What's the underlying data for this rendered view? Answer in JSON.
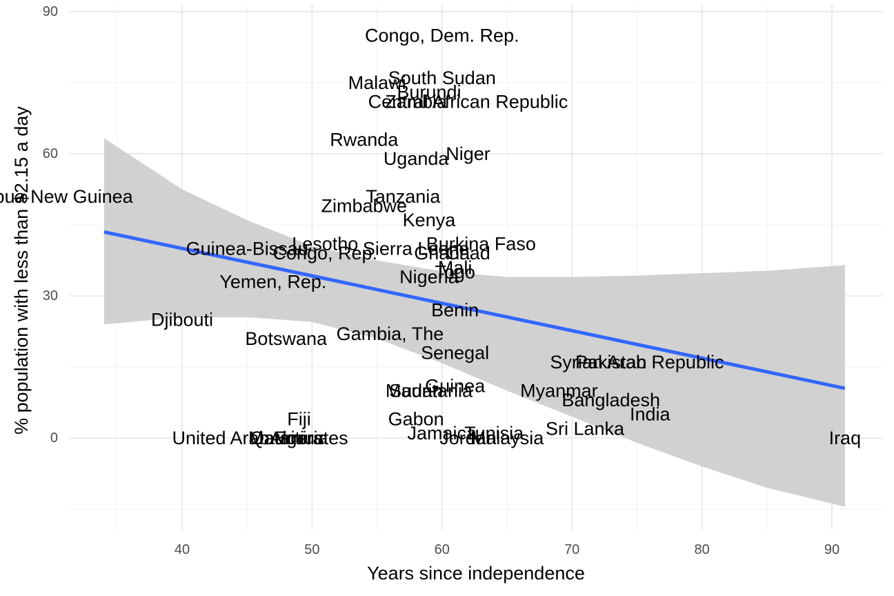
{
  "chart_data": {
    "type": "scatter",
    "title": "",
    "xlabel": "Years since independence",
    "ylabel": "% population with less than $2.15 a day",
    "xlim": [
      30,
      93
    ],
    "ylim": [
      -19,
      90
    ],
    "x_ticks": [
      40,
      50,
      60,
      70,
      80,
      90
    ],
    "y_ticks": [
      0,
      30,
      60,
      90
    ],
    "grid": true,
    "legend": "none",
    "points": [
      {
        "label": "Congo, Dem. Rep.",
        "x": 60,
        "y": 85
      },
      {
        "label": "South Sudan",
        "x": 60,
        "y": 76
      },
      {
        "label": "Malawi",
        "x": 55,
        "y": 75
      },
      {
        "label": "Burundi",
        "x": 59,
        "y": 73
      },
      {
        "label": "Zambia",
        "x": 58,
        "y": 71
      },
      {
        "label": "Central African Republic",
        "x": 62,
        "y": 71
      },
      {
        "label": "Rwanda",
        "x": 54,
        "y": 63
      },
      {
        "label": "Niger",
        "x": 62,
        "y": 60
      },
      {
        "label": "Uganda",
        "x": 58,
        "y": 59
      },
      {
        "label": "Papua New Guinea",
        "x": 30,
        "y": 51
      },
      {
        "label": "Tanzania",
        "x": 57,
        "y": 51
      },
      {
        "label": "Zimbabwe",
        "x": 54,
        "y": 49
      },
      {
        "label": "Kenya",
        "x": 59,
        "y": 46
      },
      {
        "label": "Lesotho",
        "x": 51,
        "y": 41
      },
      {
        "label": "Burkina Faso",
        "x": 63,
        "y": 41
      },
      {
        "label": "Sierra Leone",
        "x": 58,
        "y": 40
      },
      {
        "label": "Guinea-Bissau",
        "x": 45,
        "y": 40
      },
      {
        "label": "Congo, Rep.",
        "x": 51,
        "y": 39
      },
      {
        "label": "Ghana",
        "x": 60,
        "y": 39
      },
      {
        "label": "Chad",
        "x": 62,
        "y": 39
      },
      {
        "label": "Mali",
        "x": 61,
        "y": 36
      },
      {
        "label": "Togo",
        "x": 61,
        "y": 35
      },
      {
        "label": "Nigeria",
        "x": 59,
        "y": 34
      },
      {
        "label": "Yemen, Rep.",
        "x": 47,
        "y": 33
      },
      {
        "label": "Benin",
        "x": 61,
        "y": 27
      },
      {
        "label": "Djibouti",
        "x": 40,
        "y": 25
      },
      {
        "label": "Gambia, The",
        "x": 56,
        "y": 22
      },
      {
        "label": "Botswana",
        "x": 48,
        "y": 21
      },
      {
        "label": "Senegal",
        "x": 61,
        "y": 18
      },
      {
        "label": "Pakistan",
        "x": 73,
        "y": 16
      },
      {
        "label": "Syrian Arab Republic",
        "x": 75,
        "y": 16
      },
      {
        "label": "Guinea",
        "x": 61,
        "y": 11
      },
      {
        "label": "Mauritania",
        "x": 59,
        "y": 10
      },
      {
        "label": "Sudan",
        "x": 58,
        "y": 10
      },
      {
        "label": "Myanmar",
        "x": 69,
        "y": 10
      },
      {
        "label": "Bangladesh",
        "x": 73,
        "y": 8
      },
      {
        "label": "India",
        "x": 76,
        "y": 5
      },
      {
        "label": "Fiji",
        "x": 49,
        "y": 4
      },
      {
        "label": "Gabon",
        "x": 58,
        "y": 4
      },
      {
        "label": "Sri Lanka",
        "x": 71,
        "y": 2
      },
      {
        "label": "Jamaica",
        "x": 60,
        "y": 1
      },
      {
        "label": "Tunisia",
        "x": 64,
        "y": 1
      },
      {
        "label": "Jordan",
        "x": 62,
        "y": 0
      },
      {
        "label": "Malaysia",
        "x": 65,
        "y": 0
      },
      {
        "label": "United Arab Emirates",
        "x": 46,
        "y": 0
      },
      {
        "label": "Qatar",
        "x": 47,
        "y": 0
      },
      {
        "label": "Mauritius",
        "x": 48,
        "y": 0
      },
      {
        "label": "Algeria",
        "x": 49,
        "y": 0
      },
      {
        "label": "Iraq",
        "x": 91,
        "y": 0
      }
    ],
    "trend_line": {
      "x": [
        34,
        91
      ],
      "y": [
        43.5,
        10.5
      ],
      "color": "#3366ff"
    },
    "confidence_band": {
      "color": "#cccccc",
      "x": [
        34,
        40,
        45,
        50,
        55,
        60,
        65,
        70,
        75,
        80,
        85,
        91
      ],
      "upper": [
        63.3,
        52.5,
        46,
        40.5,
        37.5,
        35.2,
        34,
        34,
        34.3,
        34.8,
        35.3,
        36.5
      ],
      "lower": [
        24,
        25.5,
        25.5,
        24.5,
        21,
        15.8,
        10,
        4.5,
        -1,
        -6,
        -10.5,
        -14.5
      ]
    }
  }
}
